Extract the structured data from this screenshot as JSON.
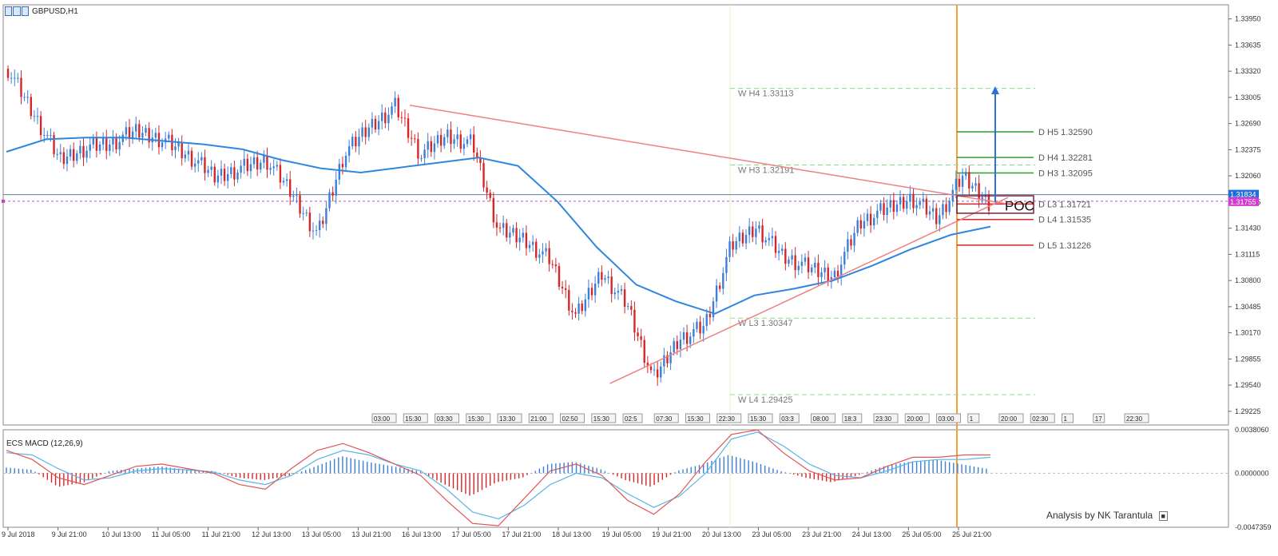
{
  "header": {
    "symbol": "GBPUSD,H1"
  },
  "indicator": {
    "label": "ECS MACD (12,26,9)"
  },
  "credit": {
    "text": "Analysis by NK Tarantula"
  },
  "colors": {
    "up": "#3d7fd6",
    "down": "#d62728",
    "ema": "#2f86e0",
    "trend": "#f08080",
    "orange": "#f5a03a",
    "green": "#2e9e2e",
    "poc": "#7a1f3a"
  },
  "chart_data": {
    "type": "candlestick",
    "price_axis": {
      "ticks": [
        "1.33950",
        "1.33635",
        "1.33320",
        "1.33005",
        "1.32690",
        "1.32375",
        "1.32060",
        "1.31745",
        "1.31430",
        "1.31115",
        "1.30800",
        "1.30485",
        "1.30170",
        "1.29855",
        "1.29540",
        "1.29225"
      ],
      "ylim": [
        1.2906,
        1.3412
      ]
    },
    "current_prices": {
      "bid": "1.31834",
      "poc": "1.31755"
    },
    "time_axis": [
      "9 Jul 2018",
      "9 Jul 21:00",
      "10 Jul 13:00",
      "11 Jul 05:00",
      "11 Jul 21:00",
      "12 Jul 13:00",
      "13 Jul 05:00",
      "13 Jul 21:00",
      "16 Jul 13:00",
      "17 Jul 05:00",
      "17 Jul 21:00",
      "18 Jul 13:00",
      "19 Jul 05:00",
      "19 Jul 21:00",
      "20 Jul 13:00",
      "23 Jul 05:00",
      "23 Jul 21:00",
      "24 Jul 13:00",
      "25 Jul 05:00",
      "25 Jul 21:00"
    ],
    "close_path": [
      1.3335,
      1.328,
      1.3225,
      1.324,
      1.3245,
      1.326,
      1.325,
      1.323,
      1.3205,
      1.3215,
      1.3225,
      1.3185,
      1.3135,
      1.323,
      1.3265,
      1.329,
      1.323,
      1.3255,
      1.3245,
      1.314,
      1.313,
      1.3105,
      1.3035,
      1.309,
      1.305,
      1.296,
      1.301,
      1.3025,
      1.312,
      1.3145,
      1.311,
      1.3095,
      1.3085,
      1.315,
      1.3165,
      1.318,
      1.3155,
      1.3205,
      1.3175
    ],
    "ema_path": [
      1.3235,
      1.325,
      1.3252,
      1.3252,
      1.3248,
      1.3244,
      1.3238,
      1.3225,
      1.3215,
      1.321,
      1.3216,
      1.3222,
      1.3228,
      1.3218,
      1.3175,
      1.312,
      1.3075,
      1.3055,
      1.304,
      1.3062,
      1.307,
      1.308,
      1.3098,
      1.3118,
      1.3135,
      1.3145
    ],
    "trend_lines": [
      {
        "from": [
          "16 Jul 13:00",
          1.3291
        ],
        "to": [
          "25 Jul 21:00",
          1.31721
        ]
      },
      {
        "from": [
          "19 Jul 05:00",
          1.2956
        ],
        "to": [
          "25 Jul 21:00",
          1.318
        ]
      }
    ],
    "weekly_pivots": [
      {
        "label": "W  H4 1.33113",
        "value": 1.33113
      },
      {
        "label": "W  H3 1.32191",
        "value": 1.32191
      },
      {
        "label": "W  L3 1.30347",
        "value": 1.30347
      },
      {
        "label": "W  L4 1.29425",
        "value": 1.29425
      }
    ],
    "daily_pivots": [
      {
        "label": "D  H5 1.32590",
        "value": 1.3259
      },
      {
        "label": "D  H4 1.32281",
        "value": 1.32281
      },
      {
        "label": "D  H3 1.32095",
        "value": 1.32095
      },
      {
        "label": "D  L3 1.31721",
        "value": 1.31721
      },
      {
        "label": "D  L4 1.31535",
        "value": 1.31535
      },
      {
        "label": "D  L5 1.31226",
        "value": 1.31226
      }
    ],
    "poc_label": "POC",
    "target_arrow": {
      "from": 1.3174,
      "to": 1.331
    },
    "session_tags": [
      "03:00",
      "15:30",
      "03:30",
      "15:30",
      "13:30",
      "21:00",
      "02:50",
      "15:30",
      "02:5",
      "07:30",
      "15:30",
      "22:30",
      "15:30",
      "03:3",
      "08:00",
      "18:3",
      "23:30",
      "20:00",
      "03:00",
      "1",
      "20:00",
      "02:30",
      "1",
      "17",
      "22:30"
    ],
    "macd": {
      "axis": {
        "ticks": [
          "0.0038060",
          "0.0000000",
          "-0.0047359"
        ],
        "ylim": [
          -0.0047359,
          0.003806
        ]
      },
      "hist": [
        0.0005,
        0.0003,
        -0.0012,
        -0.0008,
        0.0002,
        0.0004,
        0.0006,
        0.0003,
        0.0002,
        -0.0004,
        -0.0006,
        -0.0002,
        0.0006,
        0.0015,
        0.001,
        0.0006,
        0.0002,
        -0.001,
        -0.002,
        -0.0008,
        -0.0004,
        0.0008,
        0.001,
        0.0004,
        -0.0006,
        -0.0012,
        0.0002,
        0.0008,
        0.0016,
        0.001,
        0.0002,
        -0.0004,
        -0.0008,
        -0.0002,
        0.0006,
        0.001,
        0.0012,
        0.0008,
        0.0004
      ],
      "signal": [
        0.0018,
        0.0016,
        0.0004,
        -0.0006,
        -0.0004,
        0.0002,
        0.0004,
        0.0003,
        0.0001,
        -0.0006,
        -0.001,
        -0.0002,
        0.0012,
        0.002,
        0.0016,
        0.0008,
        0.0002,
        -0.0014,
        -0.0034,
        -0.004,
        -0.0028,
        -0.001,
        0.0,
        -0.0004,
        -0.0018,
        -0.003,
        -0.002,
        0.0,
        0.003,
        0.0036,
        0.0024,
        0.0008,
        -0.0002,
        -0.0004,
        0.0002,
        0.001,
        0.0012,
        0.0012,
        0.0014
      ],
      "line": [
        0.002,
        0.0012,
        -0.0004,
        -0.001,
        -0.0002,
        0.0006,
        0.0008,
        0.0004,
        0.0,
        -0.001,
        -0.0014,
        0.0004,
        0.002,
        0.0026,
        0.0018,
        0.0008,
        -0.0002,
        -0.0024,
        -0.0044,
        -0.0046,
        -0.0022,
        0.0002,
        0.0008,
        -0.0002,
        -0.0024,
        -0.0036,
        -0.0018,
        0.001,
        0.0034,
        0.0038,
        0.0018,
        0.0002,
        -0.0006,
        -0.0004,
        0.0006,
        0.0014,
        0.0014,
        0.0016,
        0.0016
      ]
    }
  }
}
